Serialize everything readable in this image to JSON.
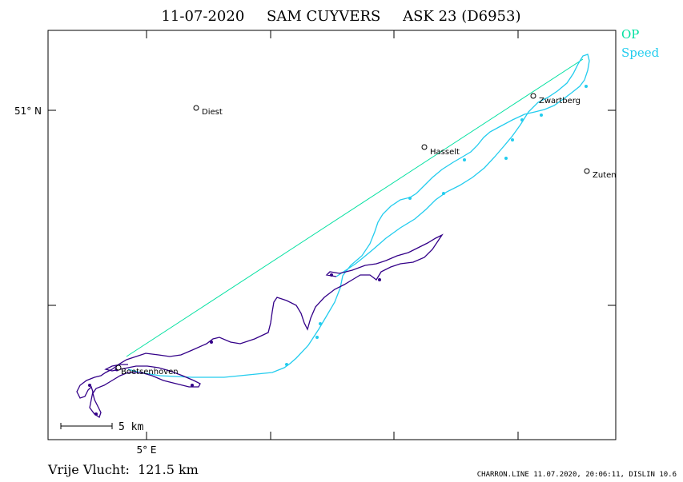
{
  "header": {
    "date": "11-07-2020",
    "pilot": "SAM CUYVERS",
    "glider": "ASK 23 (D6953)"
  },
  "legend": {
    "op_label": "OP",
    "speed_label": "Speed",
    "op_color": "#00e0a0",
    "speed_color": "#22ccee"
  },
  "axes": {
    "lat_label": "51° N",
    "lon_label": "5° E"
  },
  "places": [
    {
      "name": "Diest"
    },
    {
      "name": "Zwartberg"
    },
    {
      "name": "Hasselt"
    },
    {
      "name": "Zuten"
    },
    {
      "name": "Boetsenhoven"
    }
  ],
  "scale": {
    "label": "5 km"
  },
  "footer": {
    "distance": "Vrije Vlucht:  121.5 km",
    "credit": "CHARRON.LINE 11.07.2020, 20:06:11, DISLIN 10.6"
  },
  "colors": {
    "track_outbound": "#22ccee",
    "track_return": "#330088",
    "frame": "#000000"
  }
}
